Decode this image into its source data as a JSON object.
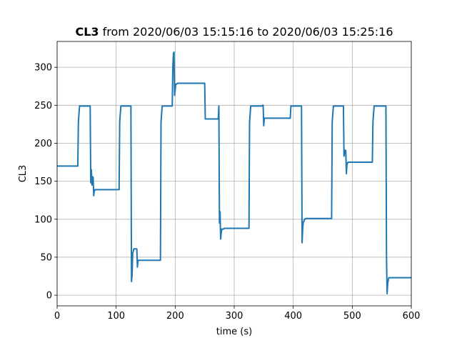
{
  "chart_data": {
    "type": "line",
    "title_bold": "CL3",
    "title_rest": " from 2020/06/03 15:15:16 to 2020/06/03 15:25:16",
    "xlabel": "time (s)",
    "ylabel": "CL3",
    "xlim": [
      0,
      600
    ],
    "ylim": [
      -14,
      334
    ],
    "xticks": [
      0,
      100,
      200,
      300,
      400,
      500,
      600
    ],
    "yticks": [
      0,
      50,
      100,
      150,
      200,
      250,
      300
    ],
    "grid": true,
    "line_color": "#1f77b4",
    "series": [
      {
        "x": [
          0,
          35,
          36,
          38,
          56,
          57,
          58,
          59,
          60,
          61,
          62,
          63,
          64,
          65,
          66,
          67,
          105,
          106,
          108,
          125,
          126,
          127,
          128,
          130,
          131,
          135,
          136,
          137,
          175,
          176,
          178,
          195,
          196,
          197,
          198,
          199,
          200,
          201,
          202,
          203,
          204,
          250,
          251,
          273,
          274,
          275,
          276,
          277,
          278,
          279,
          280,
          281,
          282,
          283,
          325,
          326,
          328,
          347,
          348,
          349,
          350,
          351,
          352,
          395,
          396,
          398,
          414,
          415,
          416,
          417,
          418,
          419,
          420,
          421,
          422,
          465,
          466,
          468,
          484,
          485,
          486,
          487,
          488,
          489,
          490,
          491,
          492,
          493,
          494,
          495,
          534,
          535,
          537,
          557,
          558,
          559,
          560,
          561,
          562,
          563,
          564,
          600
        ],
        "y": [
          170,
          170,
          228,
          249,
          249,
          148,
          165,
          145,
          156,
          155,
          131,
          139,
          138,
          139,
          139,
          139,
          139,
          228,
          249,
          249,
          18,
          27,
          55,
          61,
          61,
          61,
          37,
          46,
          46,
          228,
          249,
          249,
          300,
          318,
          320,
          263,
          270,
          278,
          278,
          278,
          279,
          279,
          232,
          232,
          249,
          95,
          110,
          74,
          82,
          87,
          87,
          87,
          87,
          88,
          88,
          228,
          249,
          249,
          250,
          250,
          223,
          233,
          233,
          233,
          249,
          249,
          249,
          69,
          88,
          96,
          97,
          100,
          100,
          101,
          101,
          101,
          228,
          249,
          249,
          249,
          183,
          187,
          191,
          190,
          160,
          172,
          174,
          175,
          175,
          175,
          175,
          228,
          249,
          249,
          50,
          2,
          15,
          20,
          23,
          23,
          23,
          23
        ]
      }
    ]
  }
}
